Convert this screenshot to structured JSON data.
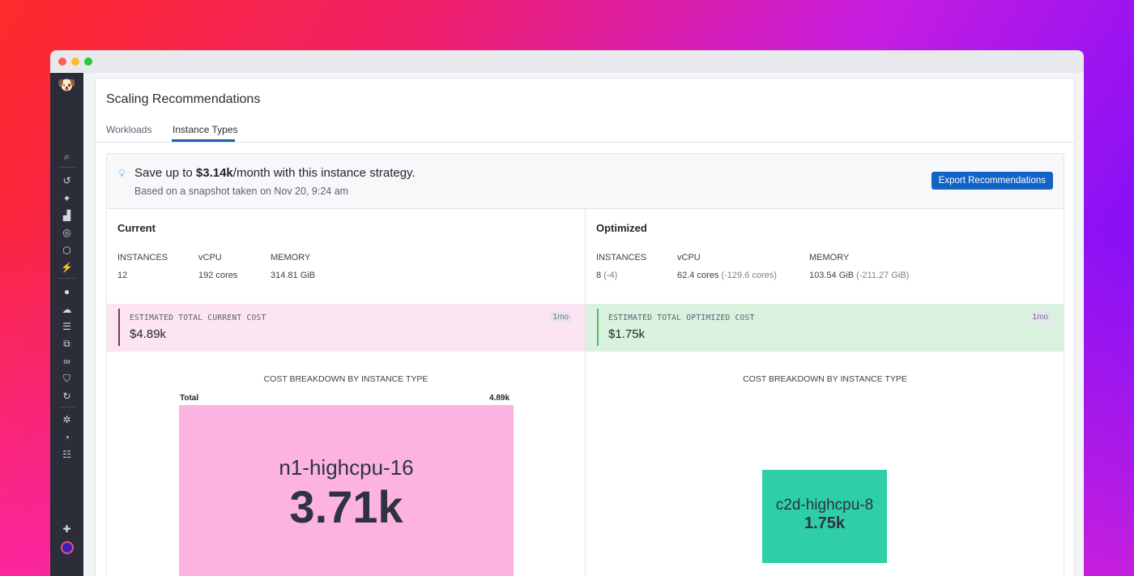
{
  "page": {
    "title": "Scaling Recommendations",
    "tabs": [
      {
        "label": "Workloads",
        "active": false
      },
      {
        "label": "Instance Types",
        "active": true
      }
    ]
  },
  "banner": {
    "icon": "lightbulb-icon",
    "save_prefix": "Save up to ",
    "save_amount": "$3.14k",
    "save_suffix": "/month with this instance strategy.",
    "snapshot": "Based on a snapshot taken on Nov 20, 9:24 am",
    "export_label": "Export Recommendations"
  },
  "current": {
    "heading": "Current",
    "labels": [
      "INSTANCES",
      "vCPU",
      "MEMORY"
    ],
    "instances": "12",
    "vcpu": "192 cores",
    "memory": "314.81 GiB",
    "cost_label": "ESTIMATED TOTAL CURRENT COST",
    "cost_value": "$4.89k",
    "period": "1mo",
    "breakdown_title": "COST BREAKDOWN BY INSTANCE TYPE"
  },
  "optimized": {
    "heading": "Optimized",
    "labels": [
      "INSTANCES",
      "vCPU",
      "MEMORY"
    ],
    "instances": "8",
    "instances_delta": "(-4)",
    "vcpu": "62.4 cores",
    "vcpu_delta": "(-129.6 cores)",
    "memory": "103.54 GiB",
    "memory_delta": "(-211.27 GiB)",
    "cost_label": "ESTIMATED TOTAL OPTIMIZED COST",
    "cost_value": "$1.75k",
    "period": "1mo",
    "breakdown_title": "COST BREAKDOWN BY INSTANCE TYPE"
  },
  "chart_data": [
    {
      "type": "treemap",
      "total_label": "Total",
      "total_value": "4.89k",
      "tiles": [
        {
          "name": "n1-highcpu-16",
          "label": "3.71k",
          "value": 3.71
        }
      ],
      "color": "#fdb3e0"
    },
    {
      "type": "treemap",
      "tiles": [
        {
          "name": "c2d-highcpu-8",
          "label": "1.75k",
          "value": 1.75
        }
      ],
      "color": "#2ecfa6"
    }
  ],
  "colors": {
    "accent": "#1264c7",
    "current_bg": "#fce4f2",
    "optimized_bg": "#daf1e0",
    "sidebar": "#2b2e38"
  }
}
